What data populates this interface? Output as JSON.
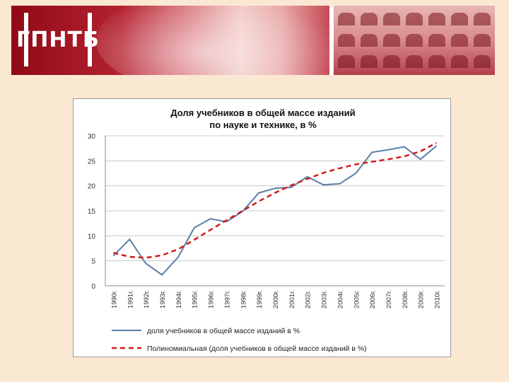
{
  "banner": {
    "logo_text": "ГПНТБ",
    "colors": {
      "primary": "#8f0a16",
      "secondary": "#d9737b"
    }
  },
  "chart_data": {
    "type": "line",
    "title_lines": [
      "Доля учебников в общей массе изданий",
      "по науке и технике, в %"
    ],
    "categories": [
      "1990г.",
      "1991г.",
      "1992г.",
      "1993г.",
      "1994г.",
      "1995г.",
      "1996г.",
      "1997г.",
      "1998г.",
      "1999г.",
      "2000г.",
      "2001г.",
      "2002г.",
      "2003г.",
      "2004г.",
      "2005г.",
      "2006г.",
      "2007г.",
      "2008г.",
      "2009г.",
      "2010г."
    ],
    "ylim": [
      0,
      30
    ],
    "yticks": [
      0,
      5,
      10,
      15,
      20,
      25,
      30
    ],
    "grid": true,
    "legend_position": "bottom",
    "series": [
      {
        "name": "доля учебников в общей массе изданий в %",
        "style": "solid",
        "color": "#5b7fa6",
        "values": [
          6.0,
          9.3,
          4.5,
          2.2,
          5.7,
          11.6,
          13.4,
          12.8,
          14.9,
          18.6,
          19.5,
          19.7,
          21.8,
          20.2,
          20.4,
          22.5,
          26.7,
          27.2,
          27.8,
          25.3,
          28.0
        ]
      },
      {
        "name": "Полиномиальная (доля учебников в общей массе изданий в %)",
        "style": "dashed",
        "color": "#d01c1c",
        "values": [
          6.6,
          5.8,
          5.6,
          6.1,
          7.3,
          9.2,
          11.2,
          13.1,
          15.0,
          16.9,
          18.6,
          20.1,
          21.4,
          22.6,
          23.5,
          24.3,
          24.8,
          25.3,
          25.9,
          26.9,
          28.6
        ]
      }
    ]
  }
}
